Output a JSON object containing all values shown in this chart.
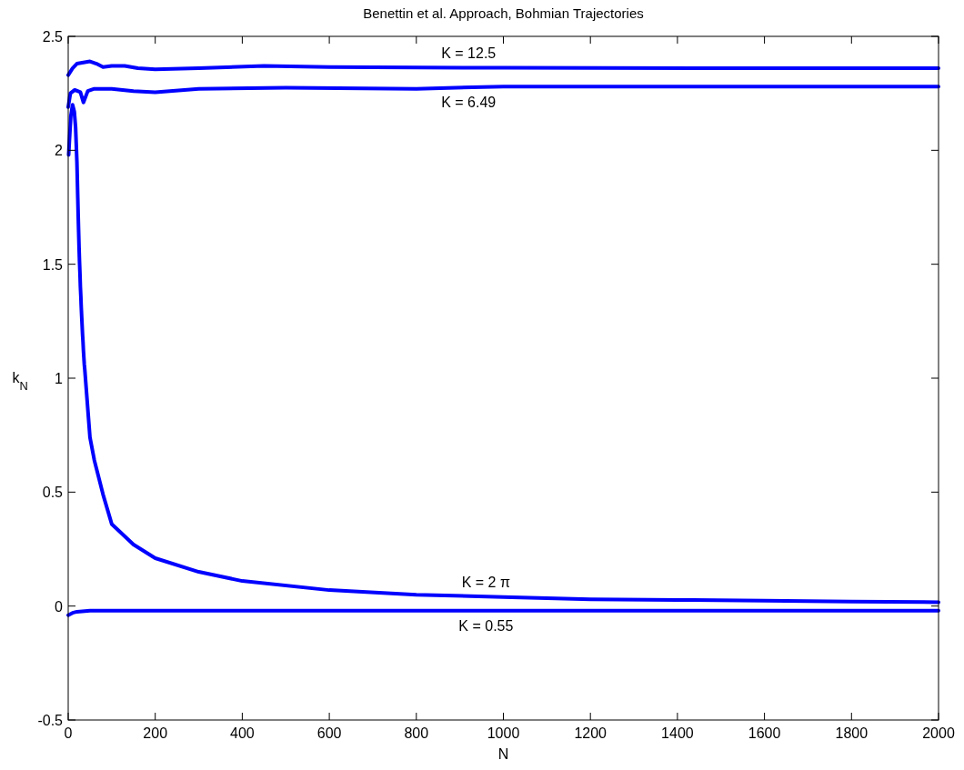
{
  "chart_data": {
    "type": "line",
    "title": "Benettin et al. Approach, Bohmian Trajectories",
    "xlabel": "N",
    "ylabel": "k$_{N}$",
    "xlim": [
      0,
      2000
    ],
    "xticks": [
      0,
      200,
      400,
      600,
      800,
      1000,
      1200,
      1400,
      1600,
      1800,
      2000
    ],
    "ylim": [
      -0.5,
      2.5
    ],
    "yticks": [
      -0.5,
      0,
      0.5,
      1,
      1.5,
      2,
      2.5
    ],
    "grid": false,
    "marker": "none",
    "line_style": "solid",
    "series": [
      {
        "name": "K = 12.5",
        "color": "#0000ff",
        "x": [
          0,
          10,
          20,
          35,
          50,
          65,
          80,
          100,
          130,
          160,
          200,
          300,
          450,
          600,
          1000,
          1500,
          2000
        ],
        "values": [
          2.33,
          2.36,
          2.38,
          2.385,
          2.39,
          2.38,
          2.365,
          2.37,
          2.37,
          2.36,
          2.355,
          2.36,
          2.37,
          2.365,
          2.362,
          2.36,
          2.36
        ]
      },
      {
        "name": "K = 6.49",
        "color": "#0000ff",
        "x": [
          0,
          5,
          15,
          28,
          35,
          45,
          60,
          100,
          150,
          200,
          300,
          500,
          800,
          1000,
          1500,
          2000
        ],
        "values": [
          2.19,
          2.25,
          2.265,
          2.255,
          2.21,
          2.26,
          2.27,
          2.27,
          2.26,
          2.255,
          2.27,
          2.275,
          2.27,
          2.28,
          2.28,
          2.28
        ]
      },
      {
        "name": "K = 2 π",
        "color": "#0000ff",
        "x": [
          1,
          3,
          6,
          10,
          14,
          17,
          19,
          20,
          21,
          22,
          23,
          24,
          25,
          26,
          27,
          28,
          29,
          30,
          31,
          32,
          33,
          34,
          35,
          36,
          37,
          38,
          50,
          60,
          80,
          100,
          150,
          200,
          300,
          400,
          600,
          800,
          1000,
          1200,
          1400,
          1600,
          1800,
          2000
        ],
        "values": [
          1.98,
          2.05,
          2.15,
          2.2,
          2.17,
          2.1,
          2.0,
          1.95,
          1.87,
          1.79,
          1.71,
          1.64,
          1.57,
          1.51,
          1.46,
          1.4,
          1.36,
          1.31,
          1.27,
          1.23,
          1.19,
          1.16,
          1.12,
          1.09,
          1.06,
          1.04,
          0.74,
          0.64,
          0.49,
          0.36,
          0.27,
          0.21,
          0.15,
          0.11,
          0.07,
          0.05,
          0.04,
          0.03,
          0.027,
          0.024,
          0.02,
          0.017
        ]
      },
      {
        "name": "K = 0.55",
        "color": "#0000ff",
        "x": [
          0,
          5,
          10,
          20,
          50,
          2000
        ],
        "values": [
          -0.04,
          -0.035,
          -0.03,
          -0.025,
          -0.02,
          -0.02
        ]
      }
    ]
  }
}
